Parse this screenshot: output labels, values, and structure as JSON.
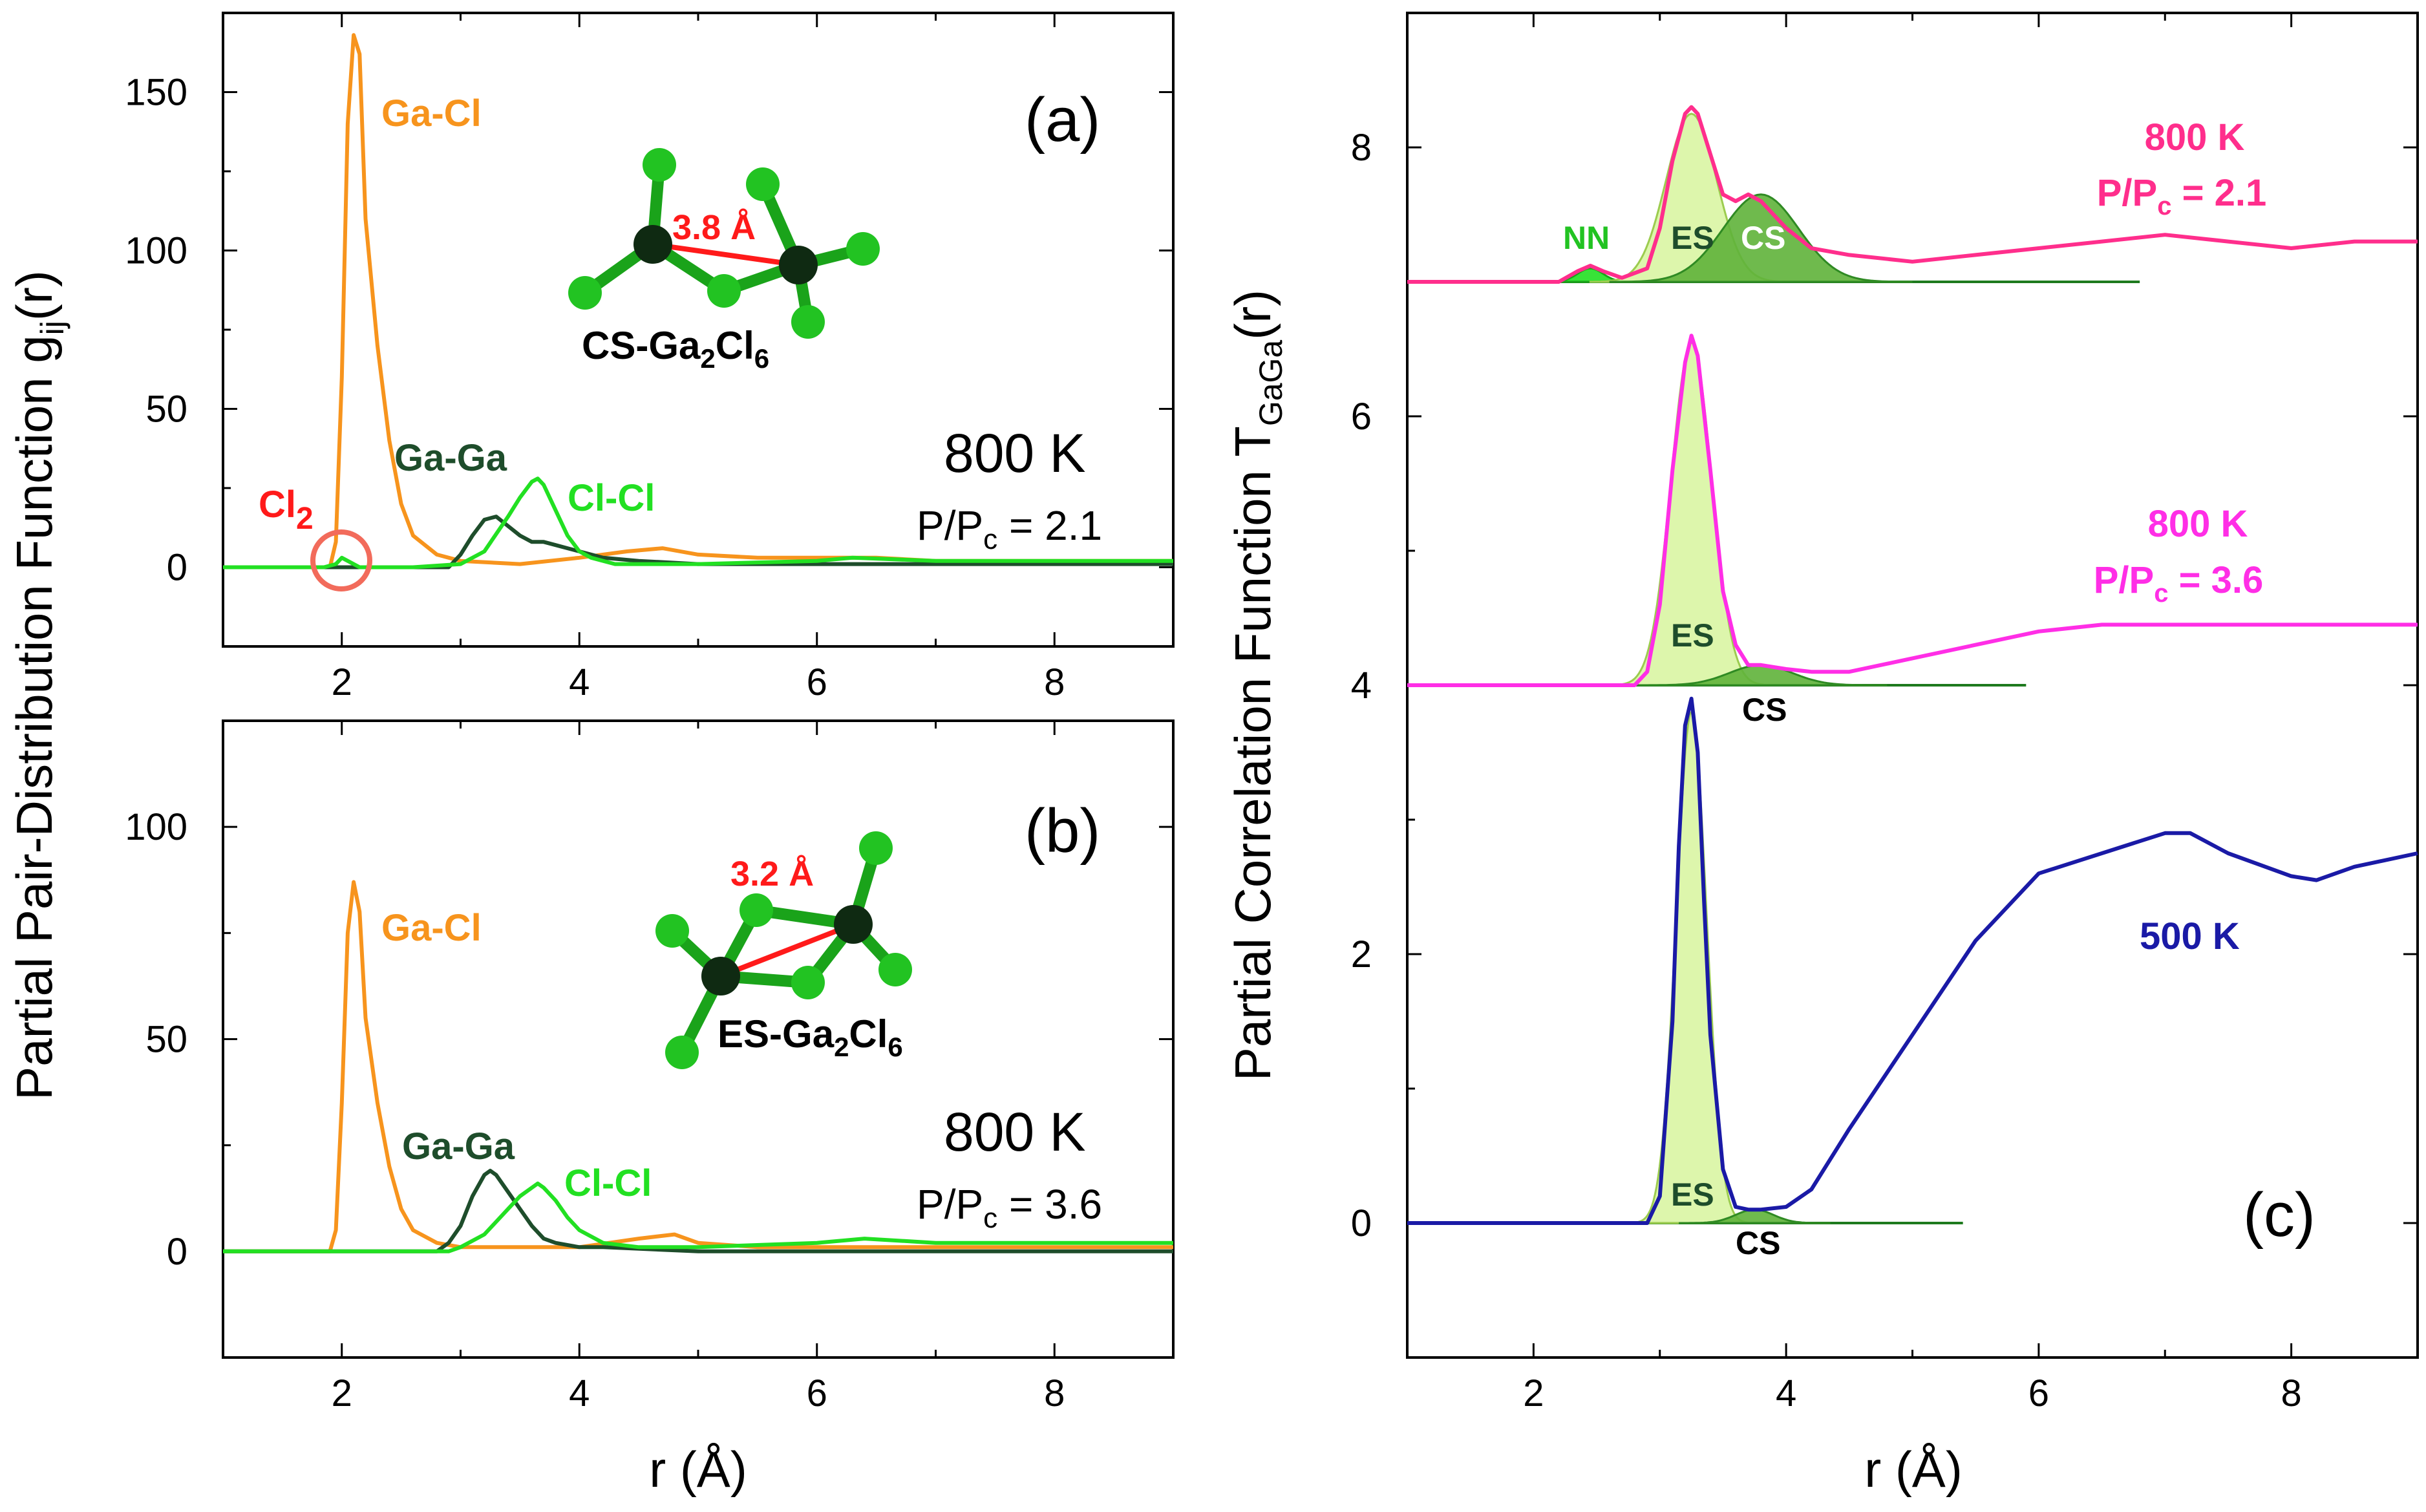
{
  "chart_data": [
    {
      "panel": "(a)",
      "type": "line",
      "xlabel": "r (Å)",
      "ylabel_main": "Partial Pair-Distribution Function g",
      "ylabel_sub": "ij",
      "ylabel_tail": "(r)",
      "xlim": [
        1,
        9
      ],
      "ylim": [
        -25,
        175
      ],
      "x_ticks": [
        2,
        4,
        6,
        8
      ],
      "y_ticks": [
        0,
        50,
        100,
        150
      ],
      "x_tick_labels": [
        "2",
        "4",
        "6",
        "8"
      ],
      "y_tick_labels": [
        "0",
        "50",
        "100",
        "150"
      ],
      "series": [
        {
          "name": "Ga-Cl",
          "color": "#f7941d",
          "x": [
            1.0,
            1.9,
            1.95,
            2.0,
            2.05,
            2.1,
            2.15,
            2.2,
            2.3,
            2.4,
            2.5,
            2.6,
            2.8,
            3.0,
            3.5,
            4.0,
            4.4,
            4.7,
            5.0,
            5.5,
            6.0,
            6.5,
            7.0,
            8.0,
            9.0
          ],
          "y": [
            0,
            0,
            8,
            60,
            140,
            168,
            162,
            110,
            70,
            40,
            20,
            10,
            4,
            2,
            1,
            3,
            5,
            6,
            4,
            3,
            3,
            3,
            2,
            2,
            2
          ]
        },
        {
          "name": "Ga-Ga",
          "color": "#1e4d2b",
          "x": [
            1.0,
            2.9,
            3.0,
            3.1,
            3.2,
            3.3,
            3.4,
            3.5,
            3.6,
            3.7,
            3.8,
            3.9,
            4.0,
            4.2,
            4.5,
            5.0,
            6.0,
            7.0,
            9.0
          ],
          "y": [
            0,
            0,
            4,
            10,
            15,
            16,
            13,
            10,
            8,
            8,
            7,
            6,
            5,
            3,
            2,
            1,
            1,
            1,
            1
          ]
        },
        {
          "name": "Cl-Cl",
          "color": "#22e022",
          "x": [
            1.0,
            1.85,
            1.95,
            2.0,
            2.05,
            2.15,
            2.4,
            2.6,
            3.0,
            3.2,
            3.4,
            3.5,
            3.6,
            3.65,
            3.7,
            3.8,
            3.9,
            4.0,
            4.1,
            4.3,
            4.6,
            5.0,
            6.0,
            6.3,
            7.0,
            9.0
          ],
          "y": [
            0,
            0,
            1,
            3,
            2,
            0,
            0,
            0,
            1,
            5,
            16,
            22,
            27,
            28,
            26,
            18,
            10,
            5,
            3,
            1,
            1,
            1,
            2,
            3,
            2,
            2
          ]
        }
      ],
      "curve_labels": [
        "Ga-Cl",
        "Ga-Ga",
        "Cl-Cl"
      ],
      "annotations": {
        "cl2": "Cl",
        "cl2_sub": "2",
        "temperature": "800 K",
        "pressure_main": "P/P",
        "pressure_sub": "c",
        "pressure_value": " = 2.1",
        "panel_label": "(a)",
        "molecule_prefix": "CS-Ga",
        "molecule_sub1": "2",
        "molecule_mid": "Cl",
        "molecule_sub2": "6",
        "distance": "3.8 Å"
      }
    },
    {
      "panel": "(b)",
      "type": "line",
      "xlabel": "r (Å)",
      "xlim": [
        1,
        9
      ],
      "ylim": [
        -25,
        125
      ],
      "x_ticks": [
        2,
        4,
        6,
        8
      ],
      "y_ticks": [
        0,
        50,
        100
      ],
      "x_tick_labels": [
        "2",
        "4",
        "6",
        "8"
      ],
      "y_tick_labels": [
        "0",
        "50",
        "100"
      ],
      "series": [
        {
          "name": "Ga-Cl",
          "color": "#f7941d",
          "x": [
            1.0,
            1.9,
            1.95,
            2.0,
            2.05,
            2.1,
            2.15,
            2.2,
            2.3,
            2.4,
            2.5,
            2.6,
            2.8,
            3.0,
            3.5,
            4.0,
            4.5,
            4.8,
            5.0,
            5.5,
            6.0,
            7.0,
            9.0
          ],
          "y": [
            0,
            0,
            5,
            35,
            75,
            87,
            80,
            55,
            35,
            20,
            10,
            5,
            2,
            1,
            1,
            1,
            3,
            4,
            2,
            1,
            1,
            1,
            1
          ]
        },
        {
          "name": "Ga-Ga",
          "color": "#1e4d2b",
          "x": [
            1.0,
            2.8,
            2.9,
            3.0,
            3.1,
            3.2,
            3.25,
            3.3,
            3.4,
            3.5,
            3.6,
            3.7,
            3.8,
            4.0,
            4.2,
            5.0,
            9.0
          ],
          "y": [
            0,
            0,
            2,
            6,
            13,
            18,
            19,
            18,
            14,
            10,
            6,
            3,
            2,
            1,
            1,
            0,
            0
          ]
        },
        {
          "name": "Cl-Cl",
          "color": "#22e022",
          "x": [
            1.0,
            2.9,
            3.0,
            3.2,
            3.4,
            3.5,
            3.6,
            3.65,
            3.7,
            3.8,
            3.9,
            4.0,
            4.2,
            4.5,
            5.0,
            6.0,
            6.4,
            7.0,
            9.0
          ],
          "y": [
            0,
            0,
            1,
            4,
            10,
            13,
            15,
            16,
            15,
            12,
            8,
            5,
            2,
            1,
            1,
            2,
            3,
            2,
            2
          ]
        }
      ],
      "curve_labels": [
        "Ga-Cl",
        "Ga-Ga",
        "Cl-Cl"
      ],
      "annotations": {
        "temperature": "800 K",
        "pressure_main": "P/P",
        "pressure_sub": "c",
        "pressure_value": " = 3.6",
        "panel_label": "(b)",
        "molecule_prefix": "ES-Ga",
        "molecule_sub1": "2",
        "molecule_mid": "Cl",
        "molecule_sub2": "6",
        "distance": "3.2 Å"
      }
    },
    {
      "panel": "(c)",
      "type": "line",
      "xlabel": "r (Å)",
      "ylabel_main": "Partial Correlation Function T",
      "ylabel_sub": "GaGa",
      "ylabel_tail": "(r)",
      "xlim": [
        1,
        9
      ],
      "ylim": [
        -1,
        9
      ],
      "x_ticks": [
        2,
        4,
        6,
        8
      ],
      "y_ticks": [
        0,
        2,
        4,
        6,
        8
      ],
      "x_tick_labels": [
        "2",
        "4",
        "6",
        "8"
      ],
      "y_tick_labels": [
        "0",
        "2",
        "4",
        "6",
        "8"
      ],
      "series": [
        {
          "name": "800 K, P/Pc = 2.1",
          "color": "#ff2e8c",
          "x": [
            1.0,
            2.2,
            2.35,
            2.45,
            2.55,
            2.7,
            2.9,
            3.0,
            3.1,
            3.2,
            3.25,
            3.3,
            3.4,
            3.5,
            3.6,
            3.7,
            3.8,
            3.9,
            4.0,
            4.2,
            4.5,
            5.0,
            5.5,
            6.0,
            6.5,
            7.0,
            7.5,
            8.0,
            8.5,
            9.0
          ],
          "y": [
            7.0,
            7.0,
            7.08,
            7.12,
            7.08,
            7.03,
            7.1,
            7.4,
            7.9,
            8.25,
            8.3,
            8.25,
            7.95,
            7.65,
            7.6,
            7.65,
            7.6,
            7.5,
            7.4,
            7.25,
            7.2,
            7.15,
            7.2,
            7.25,
            7.3,
            7.35,
            7.3,
            7.25,
            7.3,
            7.3
          ]
        },
        {
          "name": "800 K, P/Pc = 3.6",
          "color": "#ff2ee6",
          "x": [
            1.0,
            2.8,
            2.9,
            3.0,
            3.1,
            3.2,
            3.25,
            3.3,
            3.4,
            3.5,
            3.6,
            3.7,
            3.8,
            4.0,
            4.2,
            4.5,
            5.0,
            5.5,
            6.0,
            6.5,
            7.0,
            7.5,
            8.0,
            8.5,
            9.0
          ],
          "y": [
            4.0,
            4.0,
            4.1,
            4.6,
            5.6,
            6.4,
            6.6,
            6.45,
            5.6,
            4.7,
            4.3,
            4.15,
            4.15,
            4.12,
            4.1,
            4.1,
            4.2,
            4.3,
            4.4,
            4.45,
            4.45,
            4.45,
            4.45,
            4.45,
            4.45
          ]
        },
        {
          "name": "500 K",
          "color": "#1a1aa6",
          "x": [
            1.0,
            2.9,
            3.0,
            3.1,
            3.15,
            3.2,
            3.25,
            3.3,
            3.35,
            3.4,
            3.5,
            3.6,
            3.7,
            3.8,
            4.0,
            4.2,
            4.5,
            5.0,
            5.5,
            6.0,
            6.5,
            7.0,
            7.2,
            7.5,
            8.0,
            8.2,
            8.5,
            9.0
          ],
          "y": [
            0,
            0,
            0.2,
            1.5,
            2.8,
            3.7,
            3.9,
            3.5,
            2.4,
            1.4,
            0.4,
            0.12,
            0.1,
            0.1,
            0.12,
            0.25,
            0.7,
            1.4,
            2.1,
            2.6,
            2.75,
            2.9,
            2.9,
            2.75,
            2.58,
            2.55,
            2.65,
            2.75
          ]
        }
      ],
      "peak_fits": [
        {
          "name": "NN",
          "baseline": 7,
          "center": 2.45,
          "height": 0.1,
          "sigma": 0.1
        },
        {
          "name": "ES",
          "baseline": 7,
          "center": 3.25,
          "height": 1.25,
          "sigma": 0.2
        },
        {
          "name": "CS",
          "baseline": 7,
          "center": 3.8,
          "height": 0.65,
          "sigma": 0.3
        },
        {
          "name": "ES",
          "baseline": 4,
          "center": 3.25,
          "height": 2.55,
          "sigma": 0.16
        },
        {
          "name": "CS",
          "baseline": 4,
          "center": 3.8,
          "height": 0.15,
          "sigma": 0.25
        },
        {
          "name": "ES",
          "baseline": 0,
          "center": 3.25,
          "height": 3.8,
          "sigma": 0.12
        },
        {
          "name": "CS",
          "baseline": 0,
          "center": 3.75,
          "height": 0.1,
          "sigma": 0.15
        }
      ],
      "baseline_line_ends": [
        6.8,
        5.9,
        5.4
      ],
      "annotations": {
        "label_800_a": "800 K",
        "label_800_a_p": "P/P",
        "label_800_a_sub": "c",
        "label_800_a_val": " = 2.1",
        "label_800_b": "800 K",
        "label_800_b_p": "P/P",
        "label_800_b_sub": "c",
        "label_800_b_val": " = 3.6",
        "label_500": "500 K",
        "panel_label": "(c)",
        "nn": "NN",
        "es": "ES",
        "cs": "CS"
      }
    }
  ]
}
